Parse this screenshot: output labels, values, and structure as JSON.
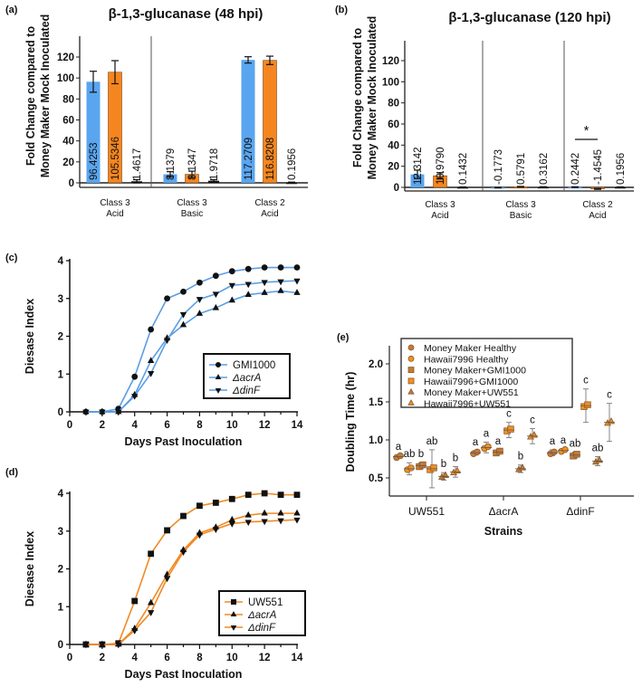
{
  "panels": {
    "a": {
      "label": "(a)"
    },
    "b": {
      "label": "(b)"
    },
    "c": {
      "label": "(c)"
    },
    "d": {
      "label": "(d)"
    },
    "e": {
      "label": "(e)"
    }
  },
  "chart_data": [
    {
      "id": "a",
      "type": "bar",
      "title": "β-1,3-glucanase (48 hpi)",
      "ylabel": [
        "Fold Change compared to",
        "Money Maker Mock Inoculated"
      ],
      "ylim": [
        0,
        140
      ],
      "yticks": [
        0,
        20,
        40,
        60,
        80,
        100,
        120
      ],
      "categories": [
        [
          "Class 3",
          "Acid"
        ],
        [
          "Class 3",
          "Basic"
        ],
        [
          "Class 2",
          "Acid"
        ]
      ],
      "series": [
        {
          "color": "#5aa5ef",
          "values": [
            96.4253,
            8.1379,
            117.2709
          ],
          "errors": [
            10,
            2.5,
            3
          ]
        },
        {
          "color": "#f5861f",
          "values": [
            105.5346,
            8.1347,
            116.8208
          ],
          "errors": [
            11,
            3,
            4
          ]
        },
        {
          "color": "#111111",
          "values": [
            1.4617,
            1.9718,
            0.1956
          ],
          "errors": [
            1.5,
            1,
            0.5
          ]
        }
      ],
      "grid": false
    },
    {
      "id": "b",
      "type": "bar",
      "title": "β-1,3-glucanase (120 hpi)",
      "ylabel": [
        "Fold Change compared to",
        "Money Maker Mock Inoculated"
      ],
      "ylim": [
        0,
        140
      ],
      "yticks": [
        0,
        20,
        40,
        60,
        80,
        100,
        120
      ],
      "categories": [
        [
          "Class 3",
          "Acid"
        ],
        [
          "Class 3",
          "Basic"
        ],
        [
          "Class 2",
          "Acid"
        ]
      ],
      "series": [
        {
          "color": "#5aa5ef",
          "values": [
            12.3142,
            -0.1773,
            0.2442
          ],
          "errors": [
            4,
            0.3,
            0.3
          ]
        },
        {
          "color": "#f5861f",
          "values": [
            10.979,
            0.5791,
            -1.4545
          ],
          "errors": [
            3,
            0.3,
            0.4
          ]
        },
        {
          "color": "#111111",
          "values": [
            0.1432,
            0.3162,
            0.1956
          ],
          "errors": [
            0.3,
            0.3,
            0.3
          ]
        }
      ],
      "annotations": [
        {
          "text": "*",
          "category": 2,
          "between_series": [
            0,
            1
          ]
        }
      ],
      "grid": false
    },
    {
      "id": "c",
      "type": "line",
      "xlabel": "Days Past Inoculation",
      "ylabel": "Diesase Index",
      "xlim": [
        0,
        14
      ],
      "ylim": [
        0,
        4
      ],
      "xticks": [
        0,
        2,
        4,
        6,
        8,
        10,
        12,
        14
      ],
      "yticks": [
        0,
        1,
        2,
        3,
        4
      ],
      "color": "#5b9ee6",
      "legend": "bottom-right",
      "x": [
        1,
        2,
        3,
        4,
        5,
        6,
        7,
        8,
        9,
        10,
        11,
        12,
        13,
        14
      ],
      "series": [
        {
          "name": "GMI1000",
          "marker": "circle",
          "values": [
            0,
            0,
            0.08,
            0.93,
            2.18,
            3.0,
            3.18,
            3.42,
            3.6,
            3.72,
            3.78,
            3.82,
            3.82,
            3.82
          ]
        },
        {
          "name": "ΔacrA",
          "marker": "triangle-up",
          "values": [
            0,
            0,
            0,
            0.45,
            1.35,
            1.95,
            2.3,
            2.6,
            2.75,
            2.95,
            3.1,
            3.15,
            3.2,
            3.15
          ]
        },
        {
          "name": "ΔdinF",
          "marker": "triangle-down",
          "values": [
            0,
            0,
            0,
            0.42,
            1.02,
            1.9,
            2.58,
            2.98,
            3.12,
            3.35,
            3.38,
            3.43,
            3.45,
            3.47
          ]
        }
      ]
    },
    {
      "id": "d",
      "type": "line",
      "xlabel": "Days Past Inoculation",
      "ylabel": "Diesase Index",
      "xlim": [
        0,
        14
      ],
      "ylim": [
        0,
        4
      ],
      "xticks": [
        0,
        2,
        4,
        6,
        8,
        10,
        12,
        14
      ],
      "yticks": [
        0,
        1,
        2,
        3,
        4
      ],
      "color": "#f08a24",
      "legend": "bottom-right",
      "x": [
        1,
        2,
        3,
        4,
        5,
        6,
        7,
        8,
        9,
        10,
        11,
        12,
        13,
        14
      ],
      "series": [
        {
          "name": "UW551",
          "marker": "square",
          "values": [
            0,
            0,
            0.03,
            1.15,
            2.4,
            3.02,
            3.4,
            3.67,
            3.75,
            3.85,
            3.96,
            4.0,
            3.96,
            3.96
          ]
        },
        {
          "name": "ΔacrA",
          "marker": "triangle-up",
          "values": [
            0,
            0,
            0,
            0.42,
            1.1,
            1.85,
            2.5,
            2.95,
            3.1,
            3.3,
            3.42,
            3.47,
            3.47,
            3.47
          ]
        },
        {
          "name": "ΔdinF",
          "marker": "triangle-down",
          "values": [
            0,
            0,
            0,
            0.37,
            0.85,
            1.75,
            2.45,
            2.9,
            3.05,
            3.2,
            3.24,
            3.26,
            3.28,
            3.3
          ]
        }
      ]
    },
    {
      "id": "e",
      "type": "scatter",
      "xlabel": "Strains",
      "ylabel": "Doubling Time (hr)",
      "ylim": [
        0.25,
        2.25
      ],
      "yticks": [
        0.5,
        1.0,
        1.5,
        2.0
      ],
      "categories": [
        "UW551",
        "ΔacrA",
        "ΔdinF"
      ],
      "legend": "top-left",
      "series": [
        {
          "name": "Money Maker Healthy",
          "marker": "circle",
          "color": "#c67a35",
          "values": [
            0.78,
            0.83,
            0.83
          ],
          "errors": [
            0.02,
            0.03,
            0.04
          ],
          "letters": [
            "a",
            "a",
            "a"
          ]
        },
        {
          "name": "Hawaii7996  Healthy",
          "marker": "circle",
          "color": "#f5901e",
          "values": [
            0.62,
            0.9,
            0.86
          ],
          "errors": [
            0.08,
            0.07,
            0.02
          ],
          "letters": [
            "ab",
            "a",
            "a"
          ]
        },
        {
          "name": "Money Maker+GMI1000",
          "marker": "square",
          "color": "#c67a35",
          "values": [
            0.66,
            0.84,
            0.8
          ],
          "errors": [
            0.04,
            0.03,
            0.04
          ],
          "letters": [
            "b",
            "a",
            "ab"
          ]
        },
        {
          "name": "Hawaii7996+GMI1000",
          "marker": "square",
          "color": "#f5901e",
          "values": [
            0.62,
            1.13,
            1.45
          ],
          "errors": [
            0.25,
            0.1,
            0.22
          ],
          "letters": [
            "ab",
            "c",
            "c"
          ]
        },
        {
          "name": "Money Maker+UW551",
          "marker": "triangle-up",
          "color": "#c67a35",
          "values": [
            0.52,
            0.62,
            0.72
          ],
          "errors": [
            0.05,
            0.05,
            0.06
          ],
          "letters": [
            "b",
            "b",
            "ab"
          ]
        },
        {
          "name": "Hawaii7996+UW551",
          "marker": "triangle-up",
          "color": "#f5901e",
          "values": [
            0.58,
            1.05,
            1.23
          ],
          "errors": [
            0.07,
            0.1,
            0.25
          ],
          "letters": [
            "b",
            "c",
            "c"
          ]
        }
      ]
    }
  ]
}
